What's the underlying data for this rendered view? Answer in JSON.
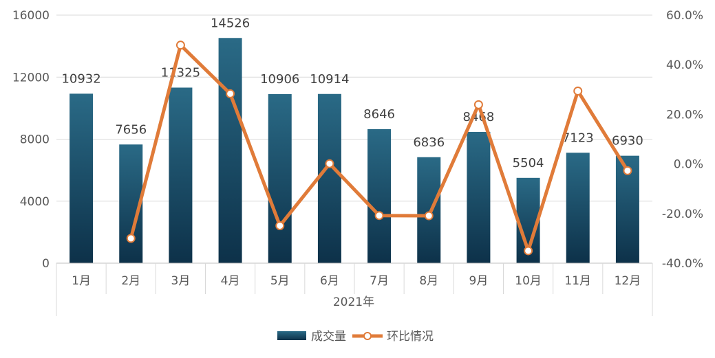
{
  "chart_data": {
    "type": "bar",
    "categories": [
      "1月",
      "2月",
      "3月",
      "4月",
      "5月",
      "6月",
      "7月",
      "8月",
      "9月",
      "10月",
      "11月",
      "12月"
    ],
    "group_label": "2021年",
    "series": [
      {
        "name": "成交量",
        "type": "bar",
        "axis": "left",
        "values": [
          10932,
          7656,
          11325,
          14526,
          10906,
          10914,
          8646,
          6836,
          8468,
          5504,
          7123,
          6930
        ],
        "labels": [
          "10932",
          "7656",
          "11325",
          "14526",
          "10906",
          "10914",
          "8646",
          "6836",
          "8468",
          "5504",
          "7123",
          "6930"
        ],
        "color": "#1f5670"
      },
      {
        "name": "环比情况",
        "type": "line",
        "axis": "right",
        "values": [
          null,
          -30.0,
          47.9,
          28.3,
          -24.9,
          0.1,
          -20.8,
          -20.9,
          23.9,
          -35.0,
          29.4,
          -2.7
        ],
        "color": "#e07b39"
      }
    ],
    "y_left": {
      "min": 0,
      "max": 16000,
      "ticks": [
        "0",
        "4000",
        "8000",
        "12000",
        "16000"
      ],
      "tick_values": [
        0,
        4000,
        8000,
        12000,
        16000
      ]
    },
    "y_right": {
      "min": -40,
      "max": 60,
      "ticks": [
        "-40.0%",
        "-20.0%",
        "0.0%",
        "20.0%",
        "40.0%",
        "60.0%"
      ],
      "tick_values": [
        -40,
        -20,
        0,
        20,
        40,
        60
      ]
    },
    "grid": true,
    "legend": {
      "position": "bottom",
      "items": [
        "成交量",
        "环比情况"
      ]
    }
  }
}
